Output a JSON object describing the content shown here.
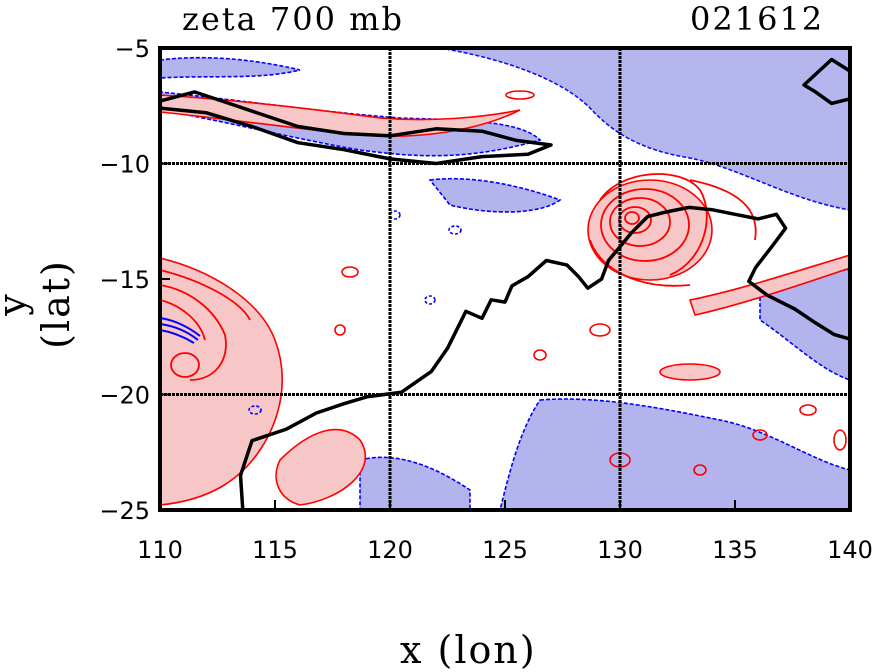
{
  "header": {
    "title_left": "zeta 700 mb",
    "title_right": "021612"
  },
  "axes": {
    "xlabel": "x (lon)",
    "ylabel": "y (lat)",
    "xlim": [
      110,
      140
    ],
    "ylim": [
      -25,
      -5
    ],
    "xticks": [
      110,
      115,
      120,
      125,
      130,
      135,
      140
    ],
    "yticks": [
      -5,
      -10,
      -15,
      -20,
      -25
    ],
    "xtick_labels": [
      "110",
      "115",
      "120",
      "125",
      "130",
      "135",
      "140"
    ],
    "ytick_labels": [
      "−5",
      "−10",
      "−15",
      "−20",
      "−25"
    ],
    "grid_lines_lon": [
      120,
      130
    ],
    "grid_lines_lat": [
      -10,
      -20
    ]
  },
  "colors": {
    "positive_contour": "#ff0000",
    "positive_fill": "#f7c6c6",
    "negative_contour": "#0000ff",
    "negative_fill": "#b3b3ee",
    "coastline": "#000000"
  },
  "map": {
    "cyclone_center": {
      "lon": 130.6,
      "lat": -12.5
    },
    "west_system_center": {
      "lon": 110.5,
      "lat": -17.0
    },
    "coastline": [
      [
        113.6,
        -25
      ],
      [
        113.5,
        -23.5
      ],
      [
        114,
        -22
      ],
      [
        115.5,
        -21.5
      ],
      [
        116.8,
        -20.8
      ],
      [
        118,
        -20.4
      ],
      [
        119,
        -20.1
      ],
      [
        120.5,
        -19.9
      ],
      [
        121.8,
        -19
      ],
      [
        122.5,
        -18
      ],
      [
        122.9,
        -17.2
      ],
      [
        123.3,
        -16.4
      ],
      [
        124.0,
        -16.7
      ],
      [
        124.4,
        -15.9
      ],
      [
        125.0,
        -16.0
      ],
      [
        125.3,
        -15.3
      ],
      [
        126.0,
        -14.9
      ],
      [
        126.8,
        -14.2
      ],
      [
        127.7,
        -14.4
      ],
      [
        128.2,
        -14.9
      ],
      [
        128.6,
        -15.4
      ],
      [
        129.2,
        -15.0
      ],
      [
        129.5,
        -14.2
      ],
      [
        130.0,
        -13.6
      ],
      [
        130.5,
        -13.0
      ],
      [
        131.2,
        -12.3
      ],
      [
        132.0,
        -12.1
      ],
      [
        133.0,
        -11.9
      ],
      [
        134.0,
        -12.0
      ],
      [
        135.0,
        -12.2
      ],
      [
        136.0,
        -12.4
      ],
      [
        136.8,
        -12.2
      ],
      [
        137.2,
        -12.8
      ],
      [
        136.6,
        -13.6
      ],
      [
        135.9,
        -14.5
      ],
      [
        135.6,
        -15.1
      ],
      [
        136.4,
        -15.7
      ],
      [
        137.6,
        -16.3
      ],
      [
        138.5,
        -16.9
      ],
      [
        139.3,
        -17.4
      ],
      [
        140,
        -17.6
      ]
    ],
    "island_north": [
      [
        110,
        -7.3
      ],
      [
        111.5,
        -6.9
      ],
      [
        113,
        -7.4
      ],
      [
        114.5,
        -7.9
      ],
      [
        116,
        -8.4
      ],
      [
        118,
        -8.7
      ],
      [
        120,
        -8.8
      ],
      [
        122,
        -8.5
      ],
      [
        124,
        -8.6
      ],
      [
        125.5,
        -9.0
      ],
      [
        127,
        -9.2
      ],
      [
        126,
        -9.6
      ],
      [
        124,
        -9.7
      ],
      [
        122,
        -10.0
      ],
      [
        120,
        -9.8
      ],
      [
        118,
        -9.4
      ],
      [
        116,
        -9.1
      ],
      [
        114,
        -8.4
      ],
      [
        112,
        -7.8
      ],
      [
        110,
        -7.6
      ]
    ],
    "island_ne": [
      [
        138,
        -6.6
      ],
      [
        139.2,
        -5.5
      ],
      [
        140,
        -6.0
      ],
      [
        140,
        -7.2
      ],
      [
        139.2,
        -7.4
      ],
      [
        138.5,
        -6.9
      ]
    ]
  }
}
